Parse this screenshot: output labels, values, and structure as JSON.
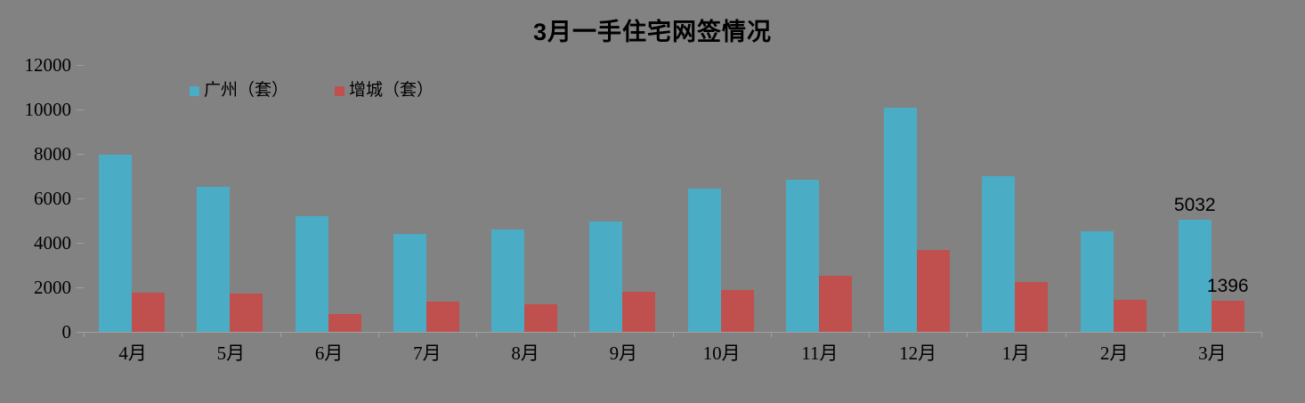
{
  "chart_data": {
    "type": "bar",
    "title": "3月一手住宅网签情况",
    "categories": [
      "4月",
      "5月",
      "6月",
      "7月",
      "8月",
      "9月",
      "10月",
      "11月",
      "12月",
      "1月",
      "2月",
      "3月"
    ],
    "series": [
      {
        "name": "广州（套）",
        "color": "#4BACC6",
        "values": [
          7950,
          6520,
          5200,
          4400,
          4600,
          4980,
          6450,
          6850,
          10090,
          7000,
          4520,
          5032
        ]
      },
      {
        "name": "增城（套）",
        "color": "#C0504D",
        "values": [
          1780,
          1720,
          790,
          1360,
          1240,
          1800,
          1880,
          2520,
          3680,
          2240,
          1440,
          1396
        ]
      }
    ],
    "data_labels": [
      {
        "series_index": 0,
        "category_index": 11,
        "text": "5032"
      },
      {
        "series_index": 1,
        "category_index": 11,
        "text": "1396"
      }
    ],
    "y_ticks": [
      "0",
      "2000",
      "4000",
      "6000",
      "8000",
      "10000",
      "12000"
    ],
    "ylim": [
      0,
      12000
    ],
    "xlabel": "",
    "ylabel": "",
    "grid": false,
    "legend_position": "top-left-inside",
    "background_color": "#828282",
    "axis_color": "#A0A0A0",
    "text_color": "#000000"
  }
}
